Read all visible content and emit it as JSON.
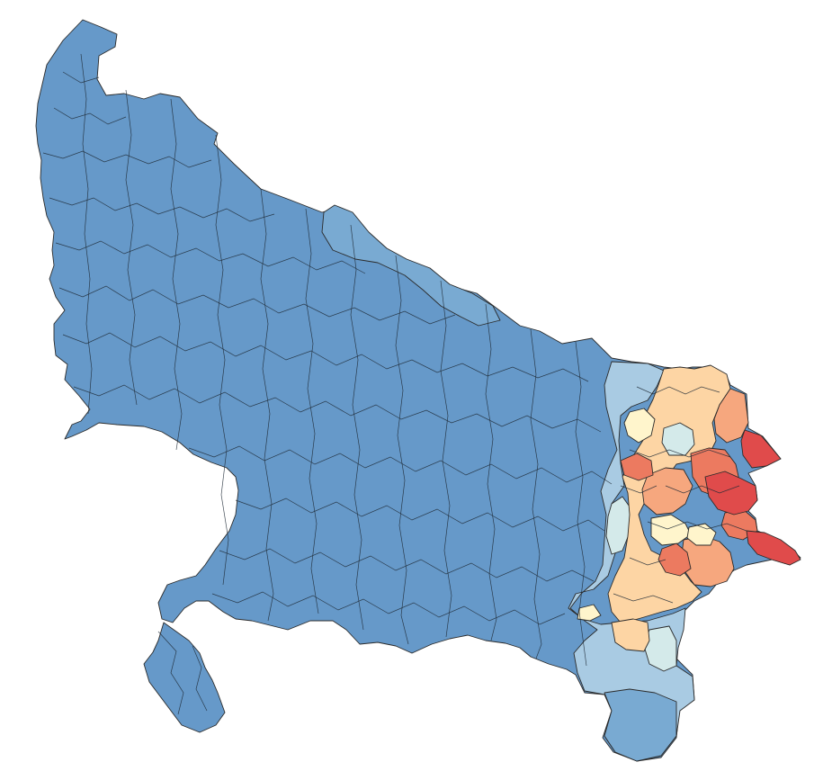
{
  "map": {
    "type": "choropleth",
    "colors": {
      "c1": "#6699c9",
      "c2": "#79aad2",
      "c3": "#a9cbe3",
      "c4": "#d4eaea",
      "c5": "#fff5cc",
      "c6": "#fdd5a4",
      "c7": "#f6a77e",
      "c8": "#ec7a60",
      "c9": "#e04b4b",
      "stroke": "#2b2b2b"
    }
  }
}
